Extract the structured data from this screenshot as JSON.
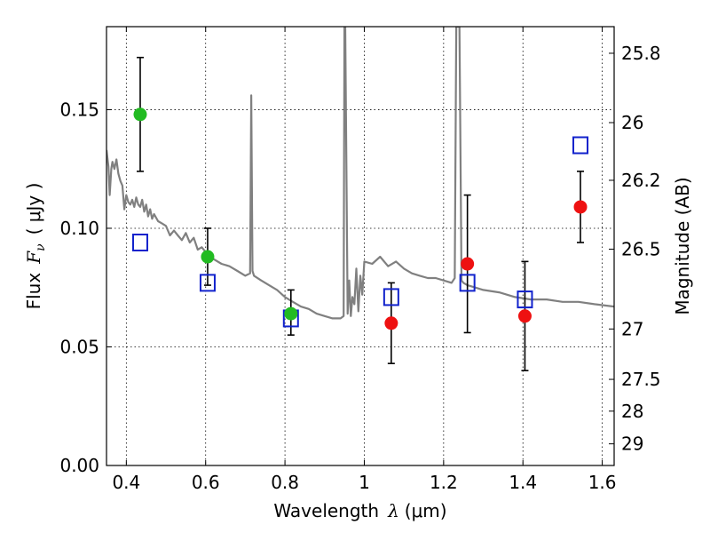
{
  "chart_data": {
    "type": "scatter",
    "xlabel_text": "Wavelength",
    "xlabel_var": "λ",
    "xlabel_unit": "(μm)",
    "ylabel_text": "Flux",
    "ylabel_var": "F",
    "ylabel_sub": "ν",
    "ylabel_unit": "( μJy )",
    "y2label": "Magnitude (AB)",
    "xlim": [
      0.35,
      1.63
    ],
    "ylim": [
      0.0,
      0.185
    ],
    "grid": true,
    "x_ticks": [
      0.4,
      0.6,
      0.8,
      1.0,
      1.2,
      1.4,
      1.6
    ],
    "x_tick_labels": [
      "0.4",
      "0.6",
      "0.8",
      "1",
      "1.2",
      "1.4",
      "1.6"
    ],
    "y_ticks": [
      0.0,
      0.05,
      0.1,
      0.15
    ],
    "y_tick_labels": [
      "0.00",
      "0.05",
      "0.10",
      "0.15"
    ],
    "mag_ticks": [
      25.8,
      26,
      26.2,
      26.5,
      27,
      27.5,
      28,
      29
    ],
    "mag_tick_labels": [
      "25.8",
      "26",
      "26.2",
      "26.5",
      "27",
      "27.5",
      "28",
      "29"
    ],
    "colors": {
      "green": "#22bb22",
      "red": "#ee1111",
      "square": "#1122cc",
      "spectrum": "#808080"
    },
    "series": [
      {
        "name": "green-points",
        "marker": "circle",
        "color": "#22bb22",
        "x": [
          0.435,
          0.605,
          0.815
        ],
        "y": [
          0.148,
          0.088,
          0.064
        ],
        "yerr_low": [
          0.124,
          0.076,
          0.055
        ],
        "yerr_high": [
          0.172,
          0.1,
          0.074
        ]
      },
      {
        "name": "red-points",
        "marker": "circle",
        "color": "#ee1111",
        "x": [
          1.068,
          1.26,
          1.405,
          1.545
        ],
        "y": [
          0.06,
          0.085,
          0.063,
          0.109
        ],
        "yerr_low": [
          0.043,
          0.056,
          0.04,
          0.094
        ],
        "yerr_high": [
          0.077,
          0.114,
          0.086,
          0.124
        ]
      },
      {
        "name": "model-squares",
        "marker": "square",
        "color": "#1122cc",
        "x": [
          0.435,
          0.605,
          0.815,
          1.068,
          1.26,
          1.405,
          1.545
        ],
        "y": [
          0.094,
          0.077,
          0.062,
          0.071,
          0.077,
          0.07,
          0.135
        ]
      },
      {
        "name": "model-spectrum",
        "type": "line",
        "color": "#808080",
        "x": [
          0.35,
          0.355,
          0.358,
          0.362,
          0.365,
          0.37,
          0.375,
          0.38,
          0.385,
          0.39,
          0.395,
          0.4,
          0.405,
          0.41,
          0.415,
          0.42,
          0.425,
          0.43,
          0.435,
          0.44,
          0.445,
          0.45,
          0.455,
          0.46,
          0.465,
          0.47,
          0.48,
          0.49,
          0.5,
          0.51,
          0.52,
          0.53,
          0.54,
          0.55,
          0.56,
          0.57,
          0.58,
          0.59,
          0.6,
          0.61,
          0.62,
          0.64,
          0.66,
          0.68,
          0.7,
          0.712,
          0.715,
          0.718,
          0.722,
          0.74,
          0.76,
          0.78,
          0.8,
          0.82,
          0.84,
          0.86,
          0.88,
          0.9,
          0.92,
          0.94,
          0.948,
          0.95,
          0.952,
          0.958,
          0.962,
          0.966,
          0.97,
          0.975,
          0.98,
          0.985,
          0.99,
          0.995,
          1.0,
          1.02,
          1.04,
          1.06,
          1.08,
          1.1,
          1.12,
          1.14,
          1.16,
          1.18,
          1.2,
          1.22,
          1.228,
          1.232,
          1.24,
          1.245,
          1.25,
          1.26,
          1.28,
          1.3,
          1.34,
          1.38,
          1.42,
          1.46,
          1.5,
          1.54,
          1.58,
          1.63
        ],
        "y": [
          0.133,
          0.126,
          0.114,
          0.125,
          0.128,
          0.125,
          0.129,
          0.123,
          0.12,
          0.118,
          0.108,
          0.114,
          0.111,
          0.11,
          0.112,
          0.109,
          0.113,
          0.11,
          0.109,
          0.112,
          0.107,
          0.11,
          0.105,
          0.108,
          0.104,
          0.106,
          0.103,
          0.102,
          0.101,
          0.097,
          0.099,
          0.097,
          0.095,
          0.098,
          0.094,
          0.096,
          0.091,
          0.092,
          0.09,
          0.089,
          0.087,
          0.085,
          0.084,
          0.082,
          0.08,
          0.081,
          0.156,
          0.082,
          0.08,
          0.078,
          0.076,
          0.074,
          0.071,
          0.069,
          0.067,
          0.066,
          0.064,
          0.063,
          0.062,
          0.062,
          0.063,
          0.185,
          0.185,
          0.064,
          0.078,
          0.063,
          0.071,
          0.068,
          0.083,
          0.065,
          0.08,
          0.072,
          0.086,
          0.085,
          0.088,
          0.084,
          0.086,
          0.083,
          0.081,
          0.08,
          0.079,
          0.079,
          0.078,
          0.077,
          0.079,
          0.185,
          0.185,
          0.078,
          0.077,
          0.076,
          0.075,
          0.074,
          0.073,
          0.071,
          0.07,
          0.07,
          0.069,
          0.069,
          0.068,
          0.067
        ]
      }
    ]
  }
}
